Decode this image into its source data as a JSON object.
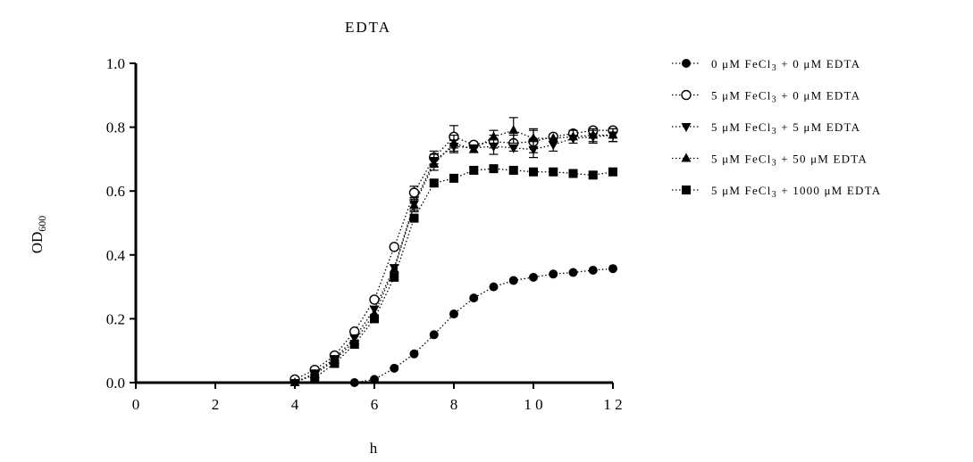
{
  "chart_data": {
    "type": "line",
    "title": "EDTA",
    "xlabel": "h",
    "ylabel": {
      "main": "OD",
      "sub": "600"
    },
    "xlim": [
      0,
      12
    ],
    "ylim": [
      0.0,
      1.0
    ],
    "xticks": [
      0,
      2,
      4,
      6,
      8,
      10,
      12
    ],
    "yticks": [
      0.0,
      0.2,
      0.4,
      0.6,
      0.8,
      1.0
    ],
    "xtick_labels": [
      "0",
      "2",
      "4",
      "6",
      "8",
      "1 0",
      "1 2"
    ],
    "ytick_labels": [
      "0.0",
      "0.2",
      "0.4",
      "0.6",
      "0.8",
      "1.0"
    ],
    "grid": false,
    "legend_position": "right",
    "line_style": "dotted",
    "series": [
      {
        "name": {
          "pre": "0 μM FeCl",
          "sub": "3",
          "post": " + 0 μM EDTA"
        },
        "marker": "circle-filled",
        "x": [
          5.5,
          6.0,
          6.5,
          7.0,
          7.5,
          8.0,
          8.5,
          9.0,
          9.5,
          10.0,
          10.5,
          11.0,
          11.5,
          12.0
        ],
        "y": [
          0.0,
          0.01,
          0.045,
          0.09,
          0.15,
          0.215,
          0.265,
          0.3,
          0.32,
          0.33,
          0.34,
          0.345,
          0.352,
          0.357
        ],
        "err": [
          0,
          0,
          0,
          0,
          0,
          0,
          0,
          0,
          0,
          0,
          0,
          0,
          0,
          0
        ]
      },
      {
        "name": {
          "pre": "5 μM FeCl",
          "sub": "3",
          "post": " + 0 μM EDTA"
        },
        "marker": "circle-open",
        "x": [
          4.0,
          4.5,
          5.0,
          5.5,
          6.0,
          6.5,
          7.0,
          7.5,
          8.0,
          8.5,
          9.0,
          9.5,
          10.0,
          10.5,
          11.0,
          11.5,
          12.0
        ],
        "y": [
          0.01,
          0.04,
          0.085,
          0.16,
          0.26,
          0.425,
          0.595,
          0.705,
          0.77,
          0.745,
          0.755,
          0.75,
          0.755,
          0.77,
          0.78,
          0.79,
          0.79
        ],
        "err": [
          0,
          0,
          0,
          0,
          0,
          0,
          0.02,
          0.02,
          0.035,
          0,
          0.02,
          0.025,
          0.035,
          0,
          0,
          0,
          0
        ]
      },
      {
        "name": {
          "pre": "5 μM FeCl",
          "sub": "3",
          "post": " + 5 μM EDTA"
        },
        "marker": "triangle-down-filled",
        "x": [
          4.0,
          4.5,
          5.0,
          5.5,
          6.0,
          6.5,
          7.0,
          7.5,
          8.0,
          8.5,
          9.0,
          9.5,
          10.0,
          10.5,
          11.0,
          11.5,
          12.0
        ],
        "y": [
          0.0,
          0.03,
          0.075,
          0.14,
          0.23,
          0.36,
          0.56,
          0.695,
          0.74,
          0.735,
          0.74,
          0.735,
          0.73,
          0.745,
          0.765,
          0.77,
          0.775
        ],
        "err": [
          0,
          0,
          0,
          0,
          0,
          0,
          0.02,
          0.02,
          0.02,
          0,
          0.025,
          0,
          0.025,
          0.02,
          0,
          0.02,
          0.02
        ]
      },
      {
        "name": {
          "pre": "5 μM FeCl",
          "sub": "3",
          "post": " + 50 μM EDTA"
        },
        "marker": "triangle-up-filled",
        "x": [
          4.0,
          4.5,
          5.0,
          5.5,
          6.0,
          6.5,
          7.0,
          7.5,
          8.0,
          8.5,
          9.0,
          9.5,
          10.0,
          10.5,
          11.0,
          11.5,
          12.0
        ],
        "y": [
          0.0,
          0.025,
          0.07,
          0.13,
          0.215,
          0.355,
          0.555,
          0.685,
          0.75,
          0.73,
          0.77,
          0.79,
          0.765,
          0.765,
          0.77,
          0.775,
          0.775
        ],
        "err": [
          0,
          0,
          0,
          0,
          0,
          0,
          0.02,
          0.02,
          0.025,
          0,
          0.02,
          0.04,
          0.03,
          0,
          0.02,
          0.02,
          0.02
        ]
      },
      {
        "name": {
          "pre": "5 μM FeCl",
          "sub": "3",
          "post": " + 1000 μM EDTA"
        },
        "marker": "square-filled",
        "x": [
          4.5,
          5.0,
          5.5,
          6.0,
          6.5,
          7.0,
          7.5,
          8.0,
          8.5,
          9.0,
          9.5,
          10.0,
          10.5,
          11.0,
          11.5,
          12.0
        ],
        "y": [
          0.015,
          0.06,
          0.12,
          0.2,
          0.33,
          0.515,
          0.625,
          0.64,
          0.665,
          0.67,
          0.665,
          0.66,
          0.66,
          0.655,
          0.65,
          0.66
        ],
        "err": [
          0,
          0,
          0,
          0,
          0,
          0,
          0.01,
          0.01,
          0.01,
          0.01,
          0.01,
          0.01,
          0.01,
          0.01,
          0.01,
          0.01
        ]
      }
    ]
  }
}
